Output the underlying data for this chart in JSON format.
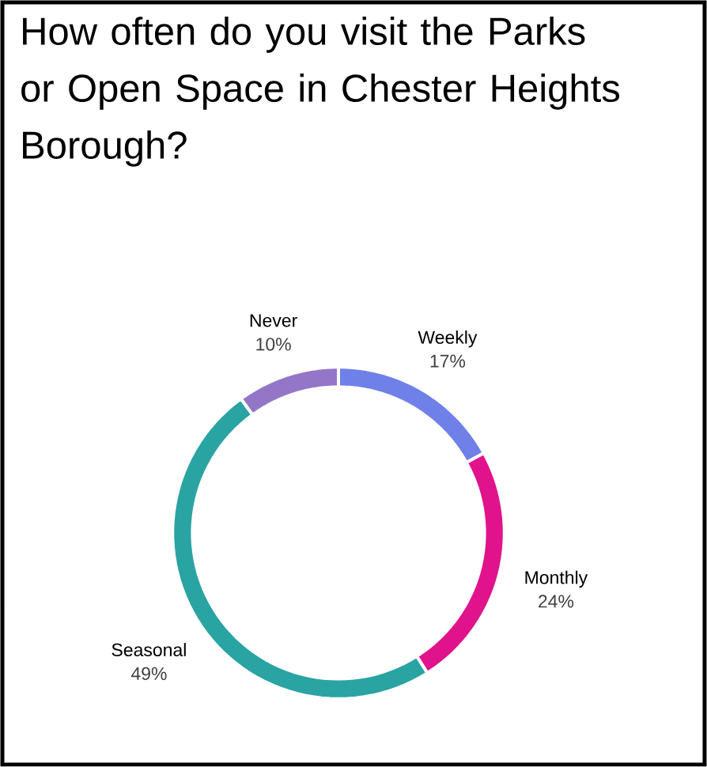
{
  "chart_data": {
    "type": "donut",
    "title": "How often do you visit the Parks or Open Space in Chester Heights Borough?",
    "categories": [
      "Weekly",
      "Monthly",
      "Seasonal",
      "Never"
    ],
    "values": [
      17,
      24,
      49,
      10
    ],
    "value_labels": [
      "17%",
      "24%",
      "49%",
      "10%"
    ],
    "colors": [
      "#6f80e8",
      "#e0138c",
      "#2aa3a3",
      "#9476c8"
    ]
  }
}
